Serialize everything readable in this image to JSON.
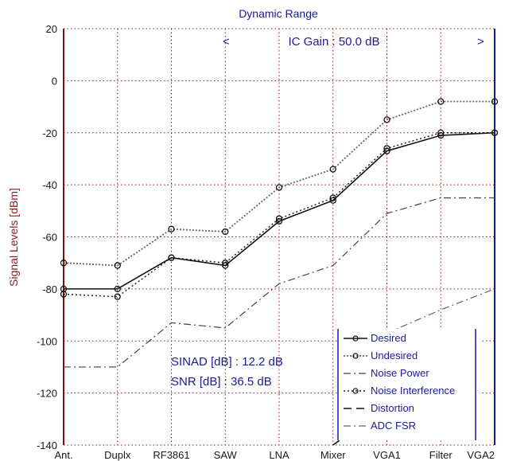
{
  "chart_data": {
    "type": "line",
    "title": "Dynamic Range",
    "ylabel": "Signal Levels [dBm]",
    "xlabel": "",
    "categories": [
      "Ant.",
      "Duplx",
      "RF3861",
      "SAW",
      "LNA",
      "Mixer",
      "VGA1",
      "Filter",
      "VGA2"
    ],
    "ylim": [
      -140,
      20
    ],
    "yticks": [
      20,
      0,
      -20,
      -40,
      -60,
      -80,
      -100,
      -120,
      -140
    ],
    "grid": true,
    "legend_position": "bottom-right",
    "gain_annotation": "IC Gain : 50.0 dB",
    "gain_arrow_left": "<",
    "gain_arrow_right": ">",
    "series": [
      {
        "name": "Desired",
        "marker": "o",
        "style": "solid",
        "color": "#111111",
        "values": [
          -80,
          -80,
          -68,
          -71,
          -54,
          -46,
          -27,
          -21,
          -20
        ]
      },
      {
        "name": "Undesired",
        "marker": "o",
        "style": "dotted-grey",
        "color": "#666666",
        "values": [
          -70,
          -71,
          -57,
          -58,
          -41,
          -34,
          -15,
          -8,
          -8
        ]
      },
      {
        "name": "Noise Power",
        "marker": "",
        "style": "dashdot",
        "color": "#444444",
        "values": [
          -110,
          -110,
          -93,
          -95,
          -78,
          -71,
          -51,
          -45,
          -45
        ]
      },
      {
        "name": "Noise Interference",
        "marker": "o",
        "style": "dotted",
        "color": "#222222",
        "values": [
          -82,
          -83,
          -68,
          -70,
          -53,
          -45,
          -26,
          -20,
          -20
        ]
      },
      {
        "name": "Distortion",
        "marker": "",
        "style": "dashed",
        "color": "#111111",
        "values": [
          null,
          null,
          null,
          null,
          null,
          -140,
          -125,
          null,
          null
        ]
      },
      {
        "name": "ADC FSR",
        "marker": "",
        "style": "dashdot",
        "color": "#666666",
        "values": [
          null,
          null,
          null,
          null,
          null,
          null,
          -97,
          -88,
          -80
        ]
      }
    ],
    "annotations": [
      "SINAD [dB] : 12.2 dB",
      "SNR [dB] : 36.5 dB"
    ]
  }
}
